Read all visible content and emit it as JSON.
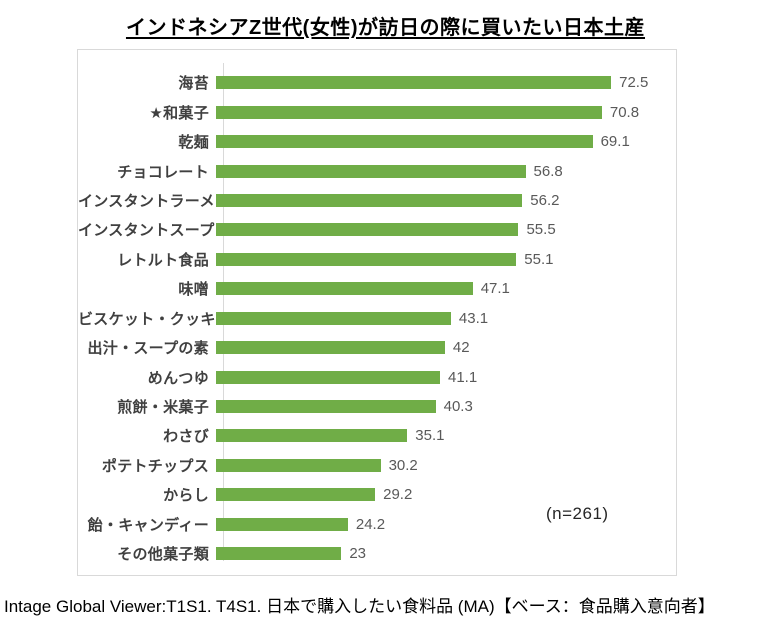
{
  "page": {
    "source_note": "Intage Global Viewer:T1S1. T4S1. 日本で購入したい食料品 (MA)【ベース：食品購入意向者】"
  },
  "chart_data": {
    "type": "bar",
    "orientation": "horizontal",
    "title": "インドネシアZ世代(女性)が訪日の際に買いたい日本土産",
    "categories": [
      "海苔",
      "★和菓子",
      "乾麺",
      "チョコレート",
      "インスタントラーメン",
      "インスタントスープ",
      "レトルト食品",
      "味噌",
      "ビスケット・クッキー",
      "出汁・スープの素",
      "めんつゆ",
      "煎餅・米菓子",
      "わさび",
      "ポテトチップス",
      "からし",
      "飴・キャンディー",
      "その他菓子類"
    ],
    "values": [
      72.5,
      70.8,
      69.1,
      56.8,
      56.2,
      55.5,
      55.1,
      47.1,
      43.1,
      42,
      41.1,
      40.3,
      35.1,
      30.2,
      29.2,
      24.2,
      23
    ],
    "annotation": "(n=261)",
    "xlabel": "",
    "ylabel": "",
    "xlim": [
      0,
      80
    ],
    "grid": false,
    "legend": false,
    "value_labels_shown": true,
    "bar_color": "#70AD47",
    "value_label_color": "#595959",
    "category_label_color": "#404040",
    "axis_line_color": "#d9d9d9"
  }
}
